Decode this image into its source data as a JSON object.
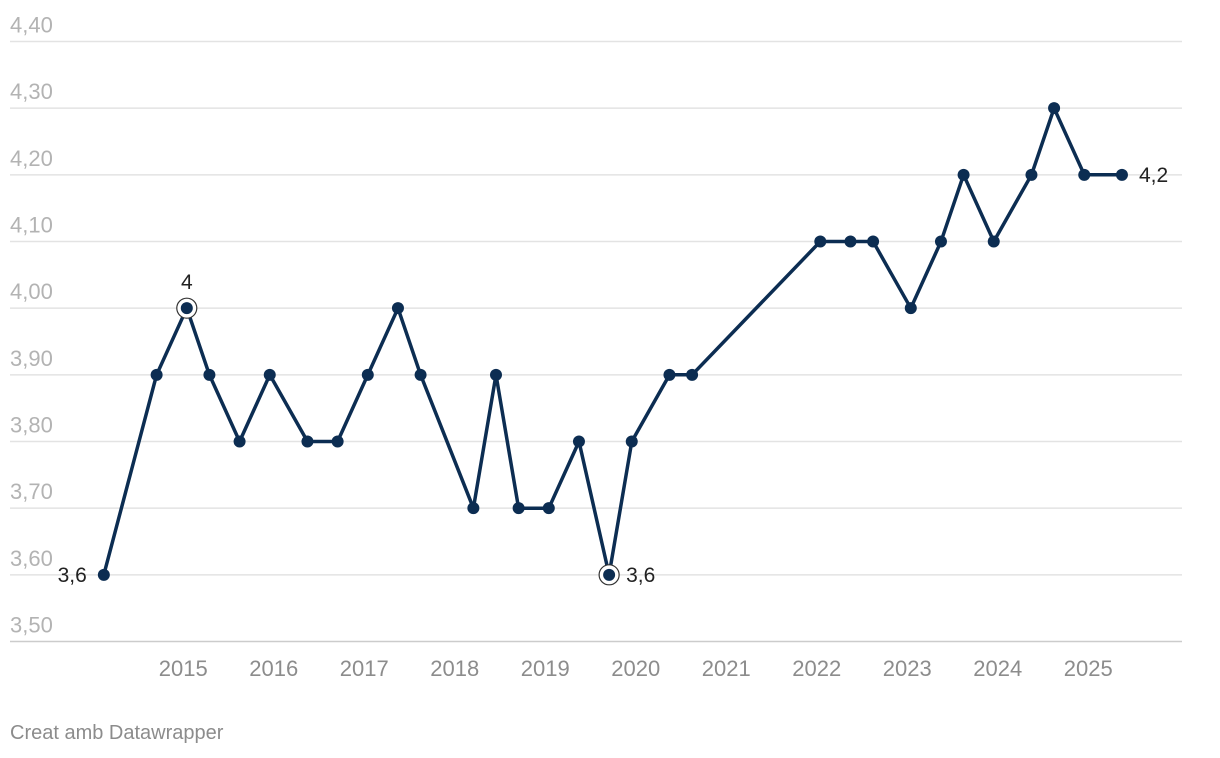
{
  "chart_data": {
    "type": "line",
    "x": [
      "2014-03",
      "2014-10",
      "2015-02",
      "2015-05",
      "2015-09",
      "2016-01",
      "2016-06",
      "2016-10",
      "2017-02",
      "2017-06",
      "2017-09",
      "2018-04",
      "2018-07",
      "2018-10",
      "2019-02",
      "2019-06",
      "2019-10",
      "2020-01",
      "2020-06",
      "2020-09",
      "2022-02",
      "2022-06",
      "2022-09",
      "2023-02",
      "2023-06",
      "2023-09",
      "2024-01",
      "2024-06",
      "2024-09",
      "2025-01",
      "2025-06"
    ],
    "values": [
      3.6,
      3.9,
      4.0,
      3.9,
      3.8,
      3.9,
      3.8,
      3.8,
      3.9,
      4.0,
      3.9,
      3.7,
      3.9,
      3.7,
      3.7,
      3.8,
      3.6,
      3.8,
      3.9,
      3.9,
      4.1,
      4.1,
      4.1,
      4.0,
      4.1,
      4.2,
      4.1,
      4.2,
      4.3,
      4.2,
      4.2
    ],
    "series_color": "#0c2d52",
    "ylim": [
      3.5,
      4.4
    ],
    "yticks": [
      "3,50",
      "3,60",
      "3,70",
      "3,80",
      "3,90",
      "4,00",
      "4,10",
      "4,20",
      "4,30",
      "4,40"
    ],
    "xticks": [
      "2015",
      "2016",
      "2017",
      "2018",
      "2019",
      "2020",
      "2021",
      "2022",
      "2023",
      "2024",
      "2025"
    ],
    "grid": true,
    "data_labels": [
      {
        "index": 0,
        "text": "3,6",
        "side": "left"
      },
      {
        "index": 2,
        "text": "4",
        "side": "top",
        "highlight": true
      },
      {
        "index": 16,
        "text": "3,6",
        "side": "right",
        "highlight": true
      },
      {
        "index": 30,
        "text": "4,2",
        "side": "right"
      }
    ]
  },
  "credit": "Creat amb Datawrapper"
}
